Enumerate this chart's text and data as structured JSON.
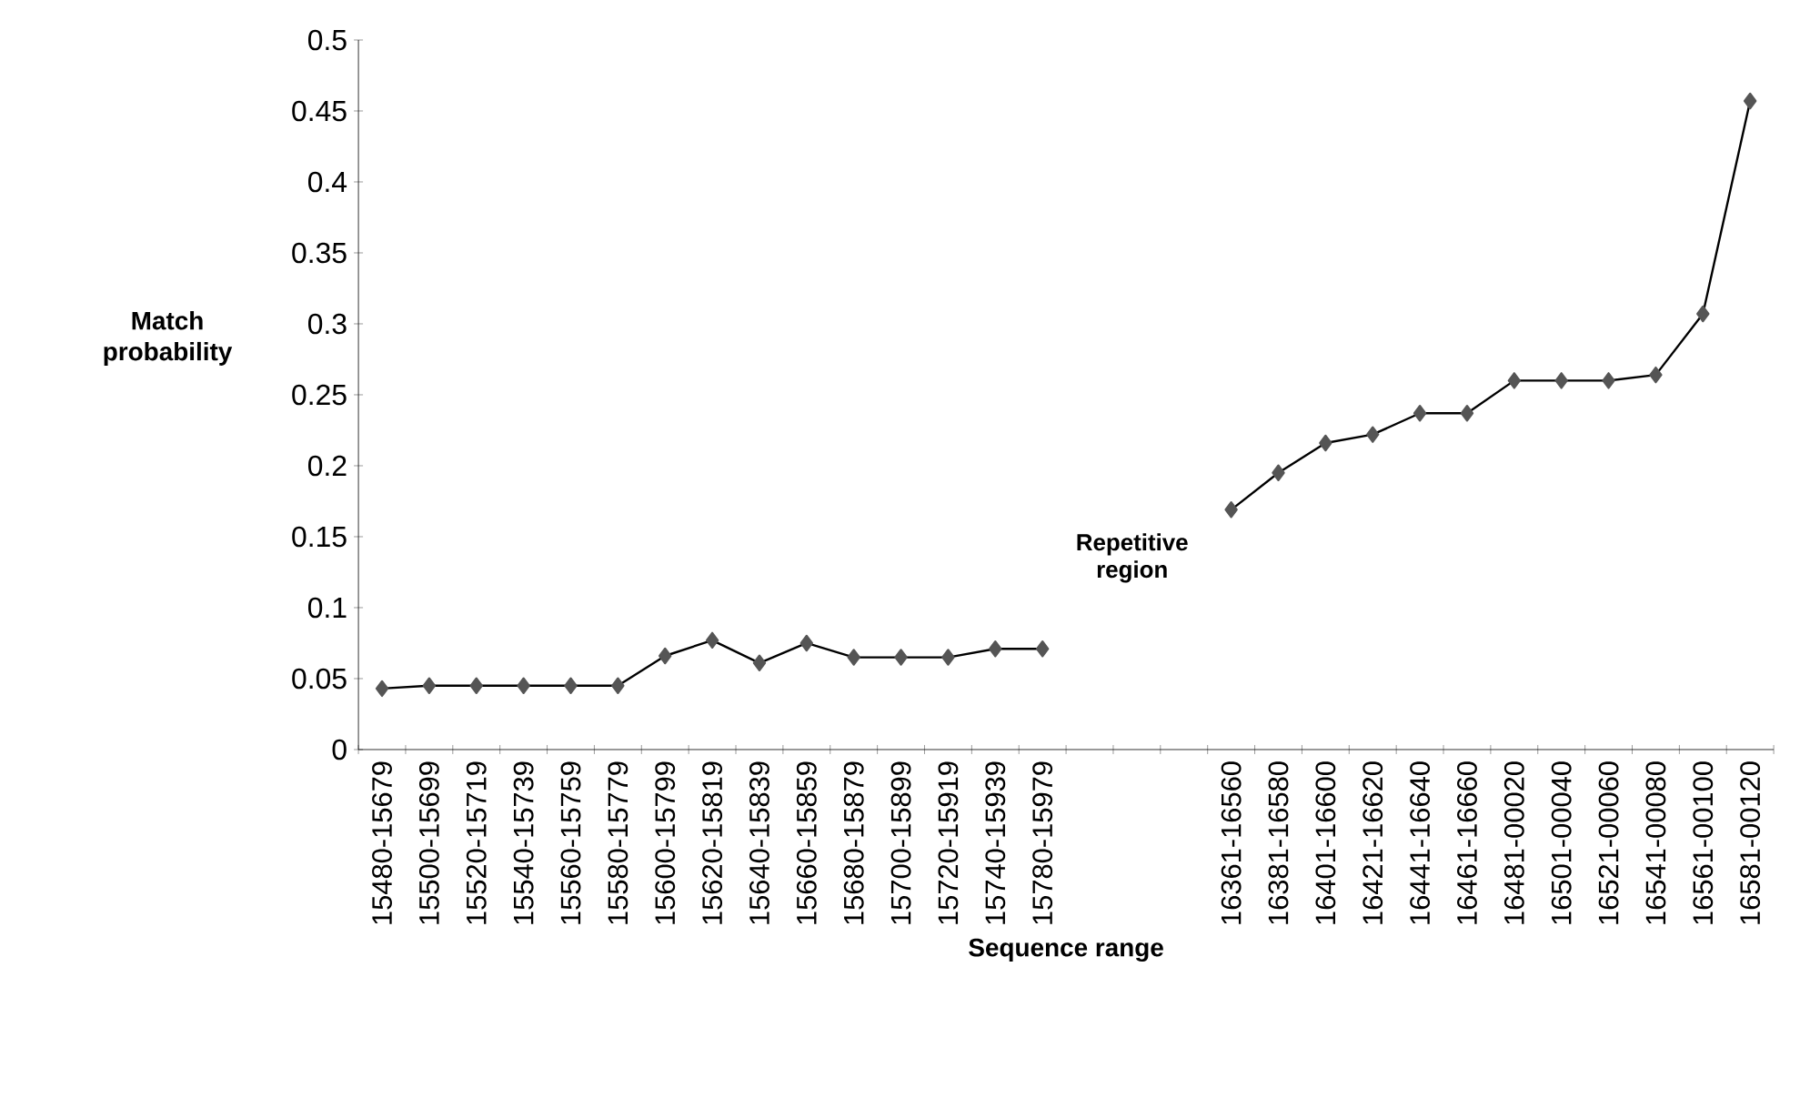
{
  "chart_data": {
    "type": "line",
    "xlabel": "Sequence range",
    "ylabel": "Match probability",
    "annotations": [
      "Repetitive region"
    ],
    "categories": [
      "15480-15679",
      "15500-15699",
      "15520-15719",
      "15540-15739",
      "15560-15759",
      "15580-15779",
      "15600-15799",
      "15620-15819",
      "15640-15839",
      "15660-15859",
      "15680-15879",
      "15700-15899",
      "15720-15919",
      "15740-15939",
      "15780-15979",
      null,
      null,
      null,
      "16361-16560",
      "16381-16580",
      "16401-16600",
      "16421-16620",
      "16441-16640",
      "16461-16660",
      "16481-00020",
      "16501-00040",
      "16521-00060",
      "16541-00080",
      "16561-00100",
      "16581-00120"
    ],
    "values": [
      0.043,
      0.045,
      0.045,
      0.045,
      0.045,
      0.045,
      0.066,
      0.077,
      0.061,
      0.075,
      0.065,
      0.065,
      0.065,
      0.071,
      0.071,
      null,
      null,
      null,
      0.169,
      0.195,
      0.216,
      0.222,
      0.237,
      0.237,
      0.26,
      0.26,
      0.26,
      0.264,
      0.307,
      0.457
    ],
    "color": "#555555",
    "marker": "diamond",
    "ylim": [
      0,
      0.5
    ],
    "yticks": [
      0,
      0.05,
      0.1,
      0.15,
      0.2,
      0.25,
      0.3,
      0.35,
      0.4,
      0.45,
      0.5
    ]
  }
}
